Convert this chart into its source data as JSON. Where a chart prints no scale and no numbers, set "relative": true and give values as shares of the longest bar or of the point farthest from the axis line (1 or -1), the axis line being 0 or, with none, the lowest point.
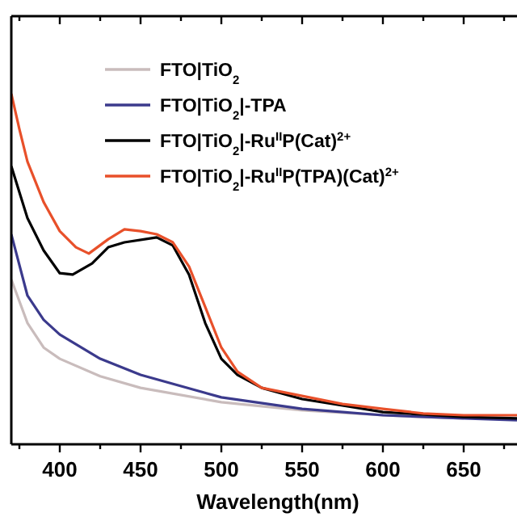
{
  "chart_data": {
    "type": "line",
    "xlabel": "Wavelength(nm)",
    "relative": true,
    "legend": "top right",
    "line_style": "solid",
    "xlim": [
      370,
      683
    ],
    "xticks": [
      {
        "value": 375,
        "label": null
      },
      400,
      {
        "value": 425,
        "label": null
      },
      450,
      {
        "value": 475,
        "label": null
      },
      500,
      {
        "value": 525,
        "label": null
      },
      550,
      {
        "value": 575,
        "label": null
      },
      600,
      {
        "value": 625,
        "label": null
      },
      650,
      {
        "value": 675,
        "label": null
      }
    ],
    "series": [
      {
        "name": "FTO|TiO$_{2}$",
        "color": "#c9bcbc",
        "x": [
          370,
          380,
          390,
          400,
          425,
          450,
          500,
          550,
          600,
          650
        ],
        "values": [
          0.47,
          0.346,
          0.276,
          0.244,
          0.194,
          0.161,
          0.12,
          0.097,
          0.083,
          0.074
        ]
      },
      {
        "name": "FTO|TiO$_{2}$|-TPA",
        "color": "#3b3a8c",
        "x": [
          370,
          380,
          390,
          400,
          425,
          450,
          500,
          550,
          600,
          650,
          683
        ],
        "values": [
          0.599,
          0.424,
          0.355,
          0.313,
          0.244,
          0.198,
          0.134,
          0.101,
          0.083,
          0.074,
          0.069
        ]
      },
      {
        "name": "FTO|TiO$_{2}$|-Ru$^{II}$P(Cat)$^{2+}$",
        "color": "#000000",
        "x": [
          370,
          380,
          390,
          400,
          408,
          420,
          430,
          440,
          460,
          470,
          480,
          490,
          500,
          510,
          525,
          550,
          575,
          600,
          650,
          683
        ],
        "values": [
          0.793,
          0.645,
          0.553,
          0.488,
          0.484,
          0.516,
          0.562,
          0.576,
          0.59,
          0.567,
          0.484,
          0.346,
          0.244,
          0.198,
          0.161,
          0.129,
          0.111,
          0.092,
          0.078,
          0.074
        ]
      },
      {
        "name": "FTO|TiO$_{2}$|-Ru$^{II}$P(TPA)(Cat)$^{2+}$",
        "color": "#e8502a",
        "x": [
          370,
          375,
          380,
          390,
          400,
          410,
          418,
          430,
          440,
          450,
          460,
          470,
          480,
          490,
          500,
          510,
          525,
          550,
          575,
          600,
          625,
          650,
          683
        ],
        "values": [
          1.0,
          0.899,
          0.806,
          0.691,
          0.608,
          0.562,
          0.544,
          0.585,
          0.613,
          0.608,
          0.599,
          0.576,
          0.507,
          0.392,
          0.276,
          0.207,
          0.161,
          0.138,
          0.115,
          0.101,
          0.088,
          0.083,
          0.083
        ]
      }
    ]
  }
}
